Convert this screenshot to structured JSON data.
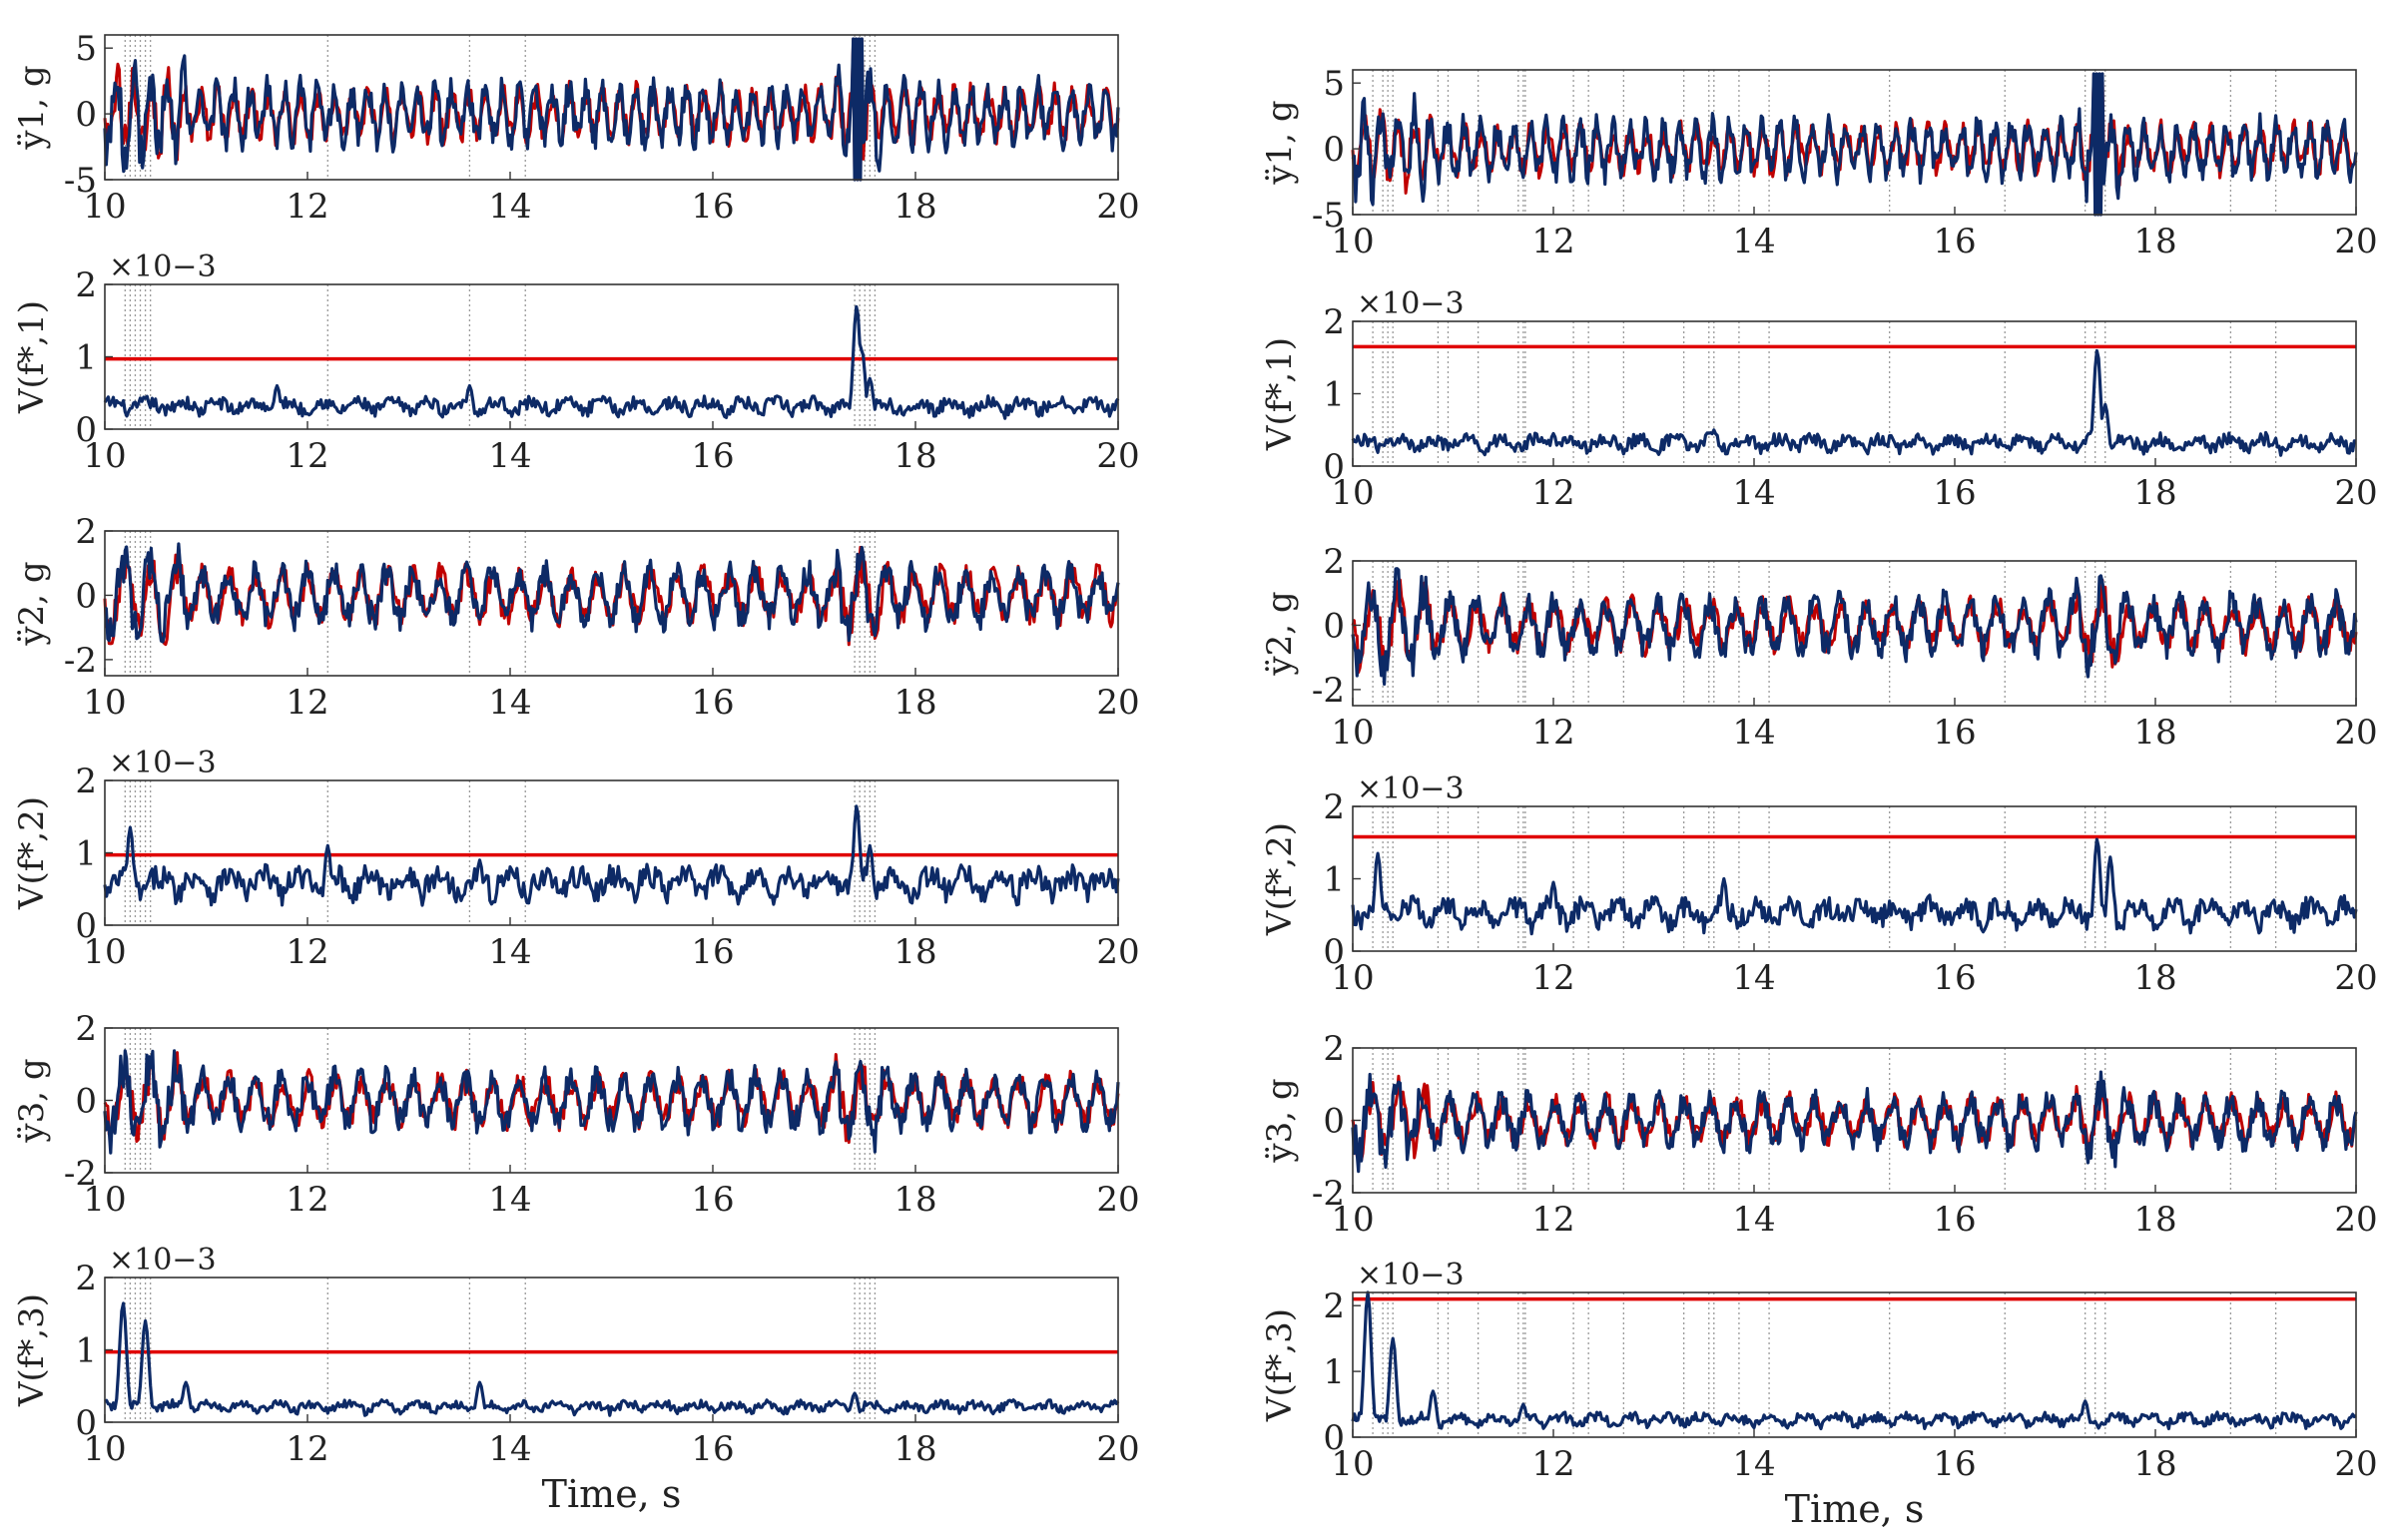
{
  "colors": {
    "measured": "#c00000",
    "predicted": "#0d2a66",
    "threshold": "#e00000",
    "marker": "#9a9a9a"
  },
  "chart_data": [
    {
      "id": "L1",
      "type": "line",
      "panel": "left-1",
      "ylabel": "ÿ1, g",
      "ylim": [
        -5,
        6
      ],
      "yticks": [
        "-5",
        "0",
        "5"
      ],
      "yticks_v": [
        -5,
        0,
        5
      ],
      "xlim": [
        10,
        20
      ],
      "xticks": [
        "10",
        "12",
        "14",
        "16",
        "18",
        "20"
      ],
      "xlabel": "",
      "series": [
        {
          "name": "measured",
          "amplitude": 2.2
        },
        {
          "name": "predicted",
          "amplitude": 2.6
        }
      ],
      "events": [
        10.2,
        10.25,
        10.3,
        10.35,
        10.4,
        10.45,
        12.2,
        13.6,
        14.15,
        17.4,
        17.45,
        17.5,
        17.55,
        17.6
      ]
    },
    {
      "id": "L2",
      "type": "line",
      "panel": "left-2",
      "ylabel": "V(f*,1)",
      "multiplier": "×10−3",
      "ylim": [
        0,
        2
      ],
      "yticks": [
        "0",
        "1",
        "2"
      ],
      "yticks_v": [
        0,
        1,
        2
      ],
      "xlim": [
        10,
        20
      ],
      "xticks": [
        "10",
        "12",
        "14",
        "16",
        "18",
        "20"
      ],
      "xlabel": "",
      "threshold": 0.97,
      "baseline": 0.3,
      "peaks": [
        [
          17.42,
          1.7
        ],
        [
          17.47,
          1.1
        ],
        [
          17.55,
          0.7
        ],
        [
          13.6,
          0.6
        ],
        [
          11.7,
          0.6
        ]
      ],
      "events": [
        10.2,
        10.25,
        10.3,
        10.35,
        10.4,
        10.45,
        12.2,
        13.6,
        14.15,
        17.4,
        17.45,
        17.5,
        17.55,
        17.6
      ]
    },
    {
      "id": "L3",
      "type": "line",
      "panel": "left-3",
      "ylabel": "ÿ2, g",
      "ylim": [
        -2.5,
        2
      ],
      "yticks": [
        "-2",
        "0",
        "2"
      ],
      "yticks_v": [
        -2,
        0,
        2
      ],
      "xlim": [
        10,
        20
      ],
      "xticks": [
        "10",
        "12",
        "14",
        "16",
        "18",
        "20"
      ],
      "xlabel": "",
      "series": [
        {
          "name": "measured",
          "amplitude": 0.9
        },
        {
          "name": "predicted",
          "amplitude": 1.0
        }
      ],
      "events": [
        10.2,
        10.25,
        10.3,
        10.35,
        10.4,
        10.45,
        12.2,
        13.6,
        14.15,
        17.4,
        17.45,
        17.5,
        17.55,
        17.6
      ]
    },
    {
      "id": "L4",
      "type": "line",
      "panel": "left-4",
      "ylabel": "V(f*,2)",
      "multiplier": "×10−3",
      "ylim": [
        0,
        2
      ],
      "yticks": [
        "0",
        "1",
        "2"
      ],
      "yticks_v": [
        0,
        1,
        2
      ],
      "xlim": [
        10,
        20
      ],
      "xticks": [
        "10",
        "12",
        "14",
        "16",
        "18",
        "20"
      ],
      "xlabel": "",
      "threshold": 0.97,
      "baseline": 0.55,
      "peaks": [
        [
          10.25,
          1.35
        ],
        [
          12.2,
          1.1
        ],
        [
          17.42,
          1.65
        ],
        [
          17.55,
          1.1
        ],
        [
          13.7,
          0.9
        ]
      ],
      "events": [
        10.2,
        10.25,
        10.3,
        10.35,
        10.4,
        10.45,
        12.2,
        13.6,
        14.15,
        17.4,
        17.45,
        17.5,
        17.55,
        17.6
      ]
    },
    {
      "id": "L5",
      "type": "line",
      "panel": "left-5",
      "ylabel": "ÿ3, g",
      "ylim": [
        -2,
        2
      ],
      "yticks": [
        "-2",
        "0",
        "2"
      ],
      "yticks_v": [
        -2,
        0,
        2
      ],
      "xlim": [
        10,
        20
      ],
      "xticks": [
        "10",
        "12",
        "14",
        "16",
        "18",
        "20"
      ],
      "xlabel": "",
      "series": [
        {
          "name": "measured",
          "amplitude": 0.75
        },
        {
          "name": "predicted",
          "amplitude": 0.85
        }
      ],
      "events": [
        10.2,
        10.25,
        10.3,
        10.35,
        10.4,
        10.45,
        12.2,
        13.6,
        14.15,
        17.4,
        17.45,
        17.5,
        17.55,
        17.6
      ]
    },
    {
      "id": "L6",
      "type": "line",
      "panel": "left-6",
      "ylabel": "V(f*,3)",
      "multiplier": "×10−3",
      "ylim": [
        0,
        2
      ],
      "yticks": [
        "0",
        "1",
        "2"
      ],
      "yticks_v": [
        0,
        1,
        2
      ],
      "xlim": [
        10,
        20
      ],
      "xticks": [
        "10",
        "12",
        "14",
        "16",
        "18",
        "20"
      ],
      "xlabel": "Time, s",
      "threshold": 0.97,
      "baseline": 0.2,
      "peaks": [
        [
          10.18,
          1.65
        ],
        [
          10.4,
          1.4
        ],
        [
          10.8,
          0.55
        ],
        [
          13.7,
          0.55
        ],
        [
          17.4,
          0.4
        ]
      ],
      "events": [
        10.2,
        10.25,
        10.3,
        10.35,
        10.4,
        10.45,
        12.2,
        13.6,
        14.15,
        17.4,
        17.45,
        17.5,
        17.55,
        17.6
      ]
    },
    {
      "id": "R1",
      "type": "line",
      "panel": "right-1",
      "ylabel": "ÿ1, g",
      "ylim": [
        -5,
        6
      ],
      "yticks": [
        "-5",
        "0",
        "5"
      ],
      "yticks_v": [
        -5,
        0,
        5
      ],
      "xlim": [
        10,
        20
      ],
      "xticks": [
        "10",
        "12",
        "14",
        "16",
        "18",
        "20"
      ],
      "xlabel": "",
      "series": [
        {
          "name": "measured",
          "amplitude": 2.0
        },
        {
          "name": "predicted",
          "amplitude": 2.4
        }
      ],
      "events": [
        10.2,
        10.3,
        10.35,
        10.4,
        10.85,
        10.95,
        11.25,
        11.65,
        11.7,
        11.72,
        12.2,
        12.35,
        12.7,
        13.3,
        13.55,
        13.6,
        13.85,
        14.15,
        15.35,
        16.5,
        17.3,
        17.4,
        17.5,
        18.75,
        19.2
      ]
    },
    {
      "id": "R2",
      "type": "line",
      "panel": "right-2",
      "ylabel": "V(f*,1)",
      "multiplier": "×10−3",
      "ylim": [
        0,
        2
      ],
      "yticks": [
        "0",
        "1",
        "2"
      ],
      "yticks_v": [
        0,
        1,
        2
      ],
      "xlim": [
        10,
        20
      ],
      "xticks": [
        "10",
        "12",
        "14",
        "16",
        "18",
        "20"
      ],
      "xlabel": "",
      "threshold": 1.65,
      "baseline": 0.3,
      "peaks": [
        [
          17.42,
          1.6
        ],
        [
          17.5,
          0.85
        ],
        [
          13.6,
          0.5
        ],
        [
          12.0,
          0.45
        ]
      ],
      "events": [
        10.2,
        10.3,
        10.35,
        10.4,
        10.85,
        10.95,
        11.25,
        11.65,
        11.7,
        11.72,
        12.2,
        12.35,
        12.7,
        13.3,
        13.55,
        13.6,
        13.85,
        14.15,
        15.35,
        16.5,
        17.3,
        17.4,
        17.5,
        18.75,
        19.2
      ]
    },
    {
      "id": "R3",
      "type": "line",
      "panel": "right-3",
      "ylabel": "ÿ2, g",
      "ylim": [
        -2.5,
        2
      ],
      "yticks": [
        "-2",
        "0",
        "2"
      ],
      "yticks_v": [
        -2,
        0,
        2
      ],
      "xlim": [
        10,
        20
      ],
      "xticks": [
        "10",
        "12",
        "14",
        "16",
        "18",
        "20"
      ],
      "xlabel": "",
      "series": [
        {
          "name": "measured",
          "amplitude": 0.85
        },
        {
          "name": "predicted",
          "amplitude": 1.0
        }
      ],
      "events": [
        10.2,
        10.3,
        10.35,
        10.4,
        10.85,
        10.95,
        11.25,
        11.65,
        11.7,
        11.72,
        12.2,
        12.35,
        12.7,
        13.3,
        13.55,
        13.6,
        13.85,
        14.15,
        15.35,
        16.5,
        17.3,
        17.4,
        17.5,
        18.75,
        19.2
      ]
    },
    {
      "id": "R4",
      "type": "line",
      "panel": "right-4",
      "ylabel": "V(f*,2)",
      "multiplier": "×10−3",
      "ylim": [
        0,
        2
      ],
      "yticks": [
        "0",
        "1",
        "2"
      ],
      "yticks_v": [
        0,
        1,
        2
      ],
      "xlim": [
        10,
        20
      ],
      "xticks": [
        "10",
        "12",
        "14",
        "16",
        "18",
        "20"
      ],
      "xlabel": "",
      "threshold": 1.58,
      "baseline": 0.5,
      "peaks": [
        [
          10.25,
          1.35
        ],
        [
          17.42,
          1.55
        ],
        [
          17.55,
          1.3
        ],
        [
          12.0,
          0.95
        ],
        [
          13.7,
          1.0
        ]
      ],
      "events": [
        10.2,
        10.3,
        10.35,
        10.4,
        10.85,
        10.95,
        11.25,
        11.65,
        11.7,
        11.72,
        12.2,
        12.35,
        12.7,
        13.3,
        13.55,
        13.6,
        13.85,
        14.15,
        15.35,
        16.5,
        17.3,
        17.4,
        17.5,
        18.75,
        19.2
      ]
    },
    {
      "id": "R5",
      "type": "line",
      "panel": "right-5",
      "ylabel": "ÿ3, g",
      "ylim": [
        -2,
        2
      ],
      "yticks": [
        "-2",
        "0",
        "2"
      ],
      "yticks_v": [
        -2,
        0,
        2
      ],
      "xlim": [
        10,
        20
      ],
      "xticks": [
        "10",
        "12",
        "14",
        "16",
        "18",
        "20"
      ],
      "xlabel": "",
      "series": [
        {
          "name": "measured",
          "amplitude": 0.7
        },
        {
          "name": "predicted",
          "amplitude": 0.8
        }
      ],
      "events": [
        10.2,
        10.3,
        10.35,
        10.4,
        10.85,
        10.95,
        11.25,
        11.65,
        11.7,
        11.72,
        12.2,
        12.35,
        12.7,
        13.3,
        13.55,
        13.6,
        13.85,
        14.15,
        15.35,
        16.5,
        17.3,
        17.4,
        17.5,
        18.75,
        19.2
      ]
    },
    {
      "id": "R6",
      "type": "line",
      "panel": "right-6",
      "ylabel": "V(f*,3)",
      "multiplier": "×10−3",
      "ylim": [
        0,
        2.2
      ],
      "yticks": [
        "0",
        "1",
        "2"
      ],
      "yticks_v": [
        0,
        1,
        2
      ],
      "xlim": [
        10,
        20
      ],
      "xticks": [
        "10",
        "12",
        "14",
        "16",
        "18",
        "20"
      ],
      "xlabel": "Time, s",
      "threshold": 2.1,
      "baseline": 0.25,
      "peaks": [
        [
          10.15,
          2.2
        ],
        [
          10.4,
          1.5
        ],
        [
          10.8,
          0.7
        ],
        [
          17.3,
          0.55
        ],
        [
          11.7,
          0.5
        ]
      ],
      "events": [
        10.2,
        10.3,
        10.35,
        10.4,
        10.85,
        10.95,
        11.25,
        11.65,
        11.7,
        11.72,
        12.2,
        12.35,
        12.7,
        13.3,
        13.55,
        13.6,
        13.85,
        14.15,
        15.35,
        16.5,
        17.3,
        17.4,
        17.5,
        18.75,
        19.2
      ]
    }
  ]
}
